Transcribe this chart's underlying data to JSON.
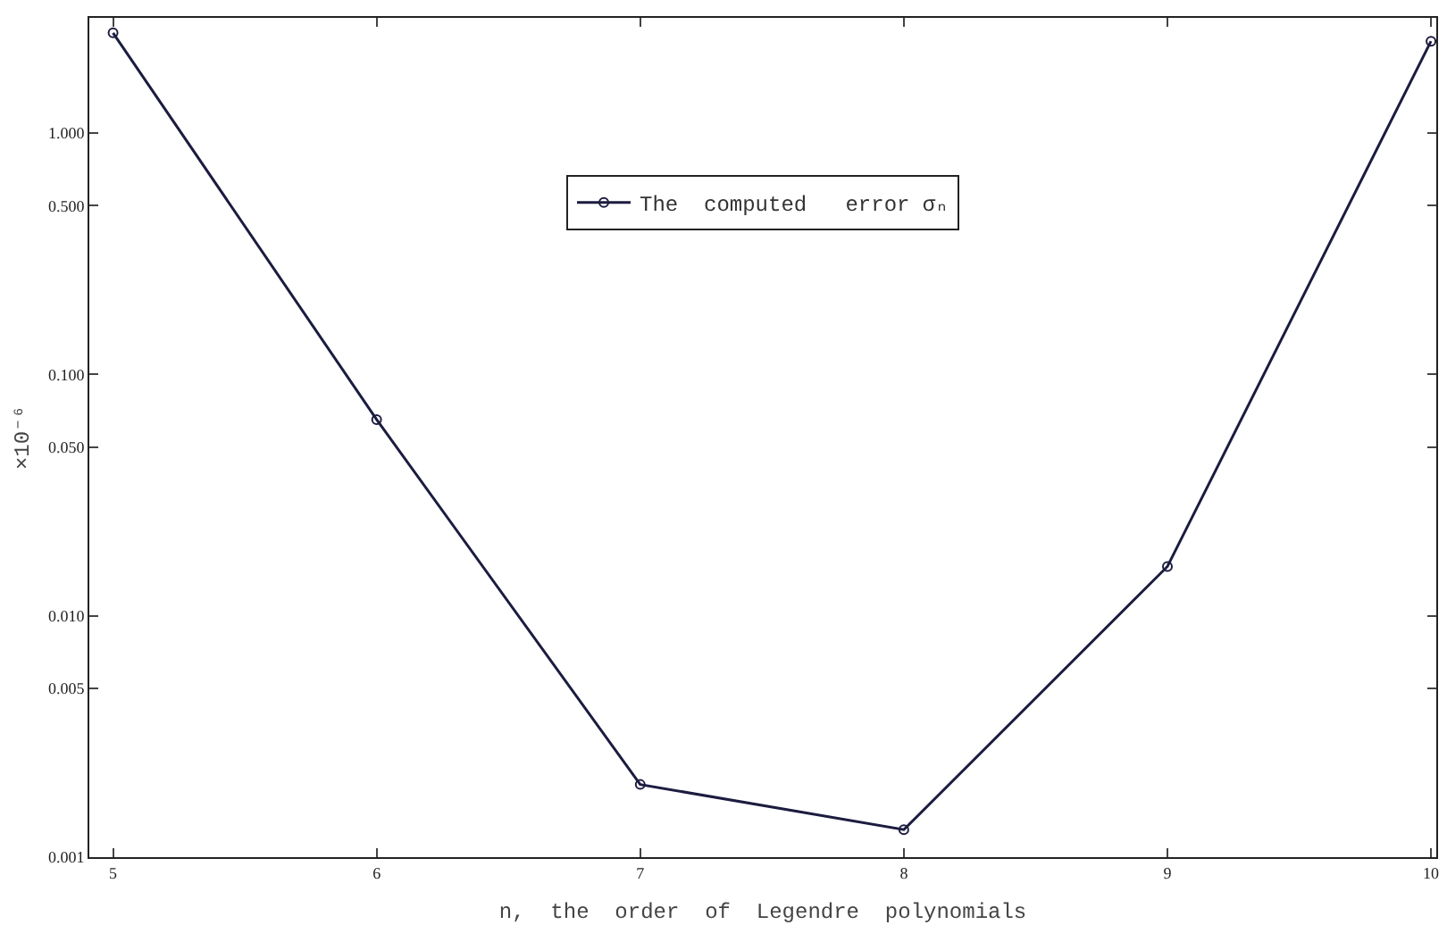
{
  "chart_data": {
    "type": "line",
    "xlabel": "n,  the  order  of  Legendre  polynomials",
    "ylabel": "×10⁻⁶",
    "log": true,
    "x": [
      5,
      6,
      7,
      8,
      9,
      10
    ],
    "series": [
      {
        "name": "The  computed   error σₙ",
        "color": "#1c1c40",
        "values": [
          2.6,
          0.065,
          0.002,
          0.0013,
          0.016,
          2.4
        ]
      }
    ],
    "xlim": [
      4.91,
      10.02
    ],
    "xticks": [
      5,
      6,
      7,
      8,
      9,
      10
    ],
    "ylim": [
      0.001,
      3
    ],
    "yticks": [
      {
        "value": 0.001,
        "label": "0.001"
      },
      {
        "value": 0.005,
        "label": "0.005"
      },
      {
        "value": 0.01,
        "label": "0.010"
      },
      {
        "value": 0.05,
        "label": "0.050"
      },
      {
        "value": 0.1,
        "label": "0.100"
      },
      {
        "value": 0.5,
        "label": "0.500"
      },
      {
        "value": 1,
        "label": "1.000"
      }
    ],
    "grid": false,
    "legend": "top",
    "marker": "circle",
    "line_style": "solid"
  }
}
